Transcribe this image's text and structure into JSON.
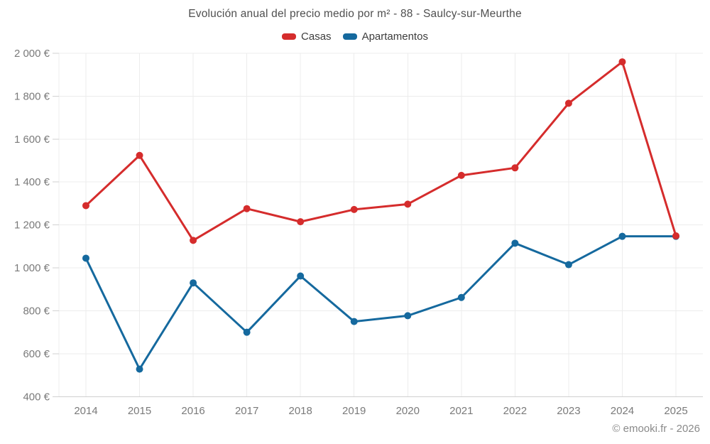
{
  "header": {
    "title": "Evolución anual del precio medio por m² - 88 - Saulcy-sur-Meurthe"
  },
  "legend": {
    "items": [
      {
        "label": "Casas",
        "color": "#d52c2c"
      },
      {
        "label": "Apartamentos",
        "color": "#15699e"
      }
    ]
  },
  "footer": {
    "credit": "© emooki.fr - 2026"
  },
  "chart_data": {
    "type": "line",
    "title": "Evolución anual del precio medio por m² - 88 - Saulcy-sur-Meurthe",
    "categories": [
      "2014",
      "2015",
      "2016",
      "2017",
      "2018",
      "2019",
      "2020",
      "2021",
      "2022",
      "2023",
      "2024",
      "2025"
    ],
    "series": [
      {
        "name": "Casas",
        "color": "#d52c2c",
        "values": [
          1290,
          1524,
          1128,
          1276,
          1215,
          1272,
          1297,
          1431,
          1466,
          1767,
          1960,
          1149
        ]
      },
      {
        "name": "Apartamentos",
        "color": "#15699e",
        "values": [
          1045,
          528,
          930,
          700,
          962,
          750,
          777,
          862,
          1115,
          1015,
          1147,
          1147
        ]
      }
    ],
    "ylim": [
      400,
      2000
    ],
    "ytick_values": [
      400,
      600,
      800,
      1000,
      1200,
      1400,
      1600,
      1800,
      2000
    ],
    "ytick_labels": [
      "400 €",
      "600 €",
      "800 €",
      "1 000 €",
      "1 200 €",
      "1 400 €",
      "1 600 €",
      "1 800 €",
      "2 000 €"
    ],
    "grid": true,
    "legend_position": "top",
    "marker_radius": 5,
    "line_width": 3,
    "grid_color": "#ececec",
    "axis_color": "#cfcfcf",
    "tick_label_color": "#7a7a7a"
  }
}
